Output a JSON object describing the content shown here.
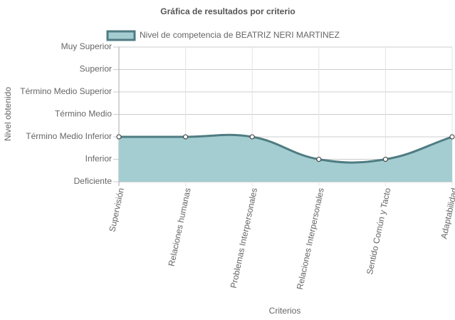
{
  "chart_data": {
    "type": "line",
    "title": "Gráfica de resultados por criterio",
    "x_label": "Criterios",
    "y_label": "Nivel obtenido",
    "categories": [
      "Supervisión",
      "Relaciones humanas",
      "Problemas Interpersonales",
      "Relaciones Interpersonales",
      "Sentido Común y Tacto",
      "Adaptabilidad"
    ],
    "series": [
      {
        "name": "Nivel de competencia de BEATRIZ NERI MARTINEZ",
        "color": "#4f7c82",
        "fill": "#a3cdd1",
        "values": [
          2,
          2,
          2,
          1,
          1,
          2
        ]
      }
    ],
    "ylim": [
      0,
      6
    ],
    "yticks": [
      {
        "value": 0,
        "label": "Deficiente"
      },
      {
        "value": 1,
        "label": "Inferior"
      },
      {
        "value": 2,
        "label": "Término Medio Inferior"
      },
      {
        "value": 3,
        "label": "Término Medio"
      },
      {
        "value": 4,
        "label": "Término Medio Superior"
      },
      {
        "value": 5,
        "label": "Superior"
      },
      {
        "value": 6,
        "label": "Muy Superior"
      }
    ],
    "grid": true,
    "legend": "top"
  }
}
